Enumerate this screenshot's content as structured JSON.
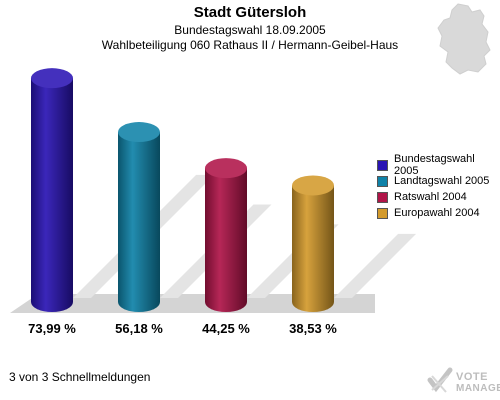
{
  "header": {
    "title": "Stadt Gütersloh",
    "subtitle1": "Bundestagswahl 18.09.2005",
    "subtitle2": "Wahlbeteiligung 060 Rathaus II / Hermann-Geibel-Haus"
  },
  "footer": {
    "text": "3 von 3 Schnellmeldungen"
  },
  "brand": {
    "line1": "VOTE",
    "line2": "MANAGER"
  },
  "icons": {
    "map": "germany-map-icon",
    "logo": "votemanager-logo-icon"
  },
  "chart_data": {
    "type": "bar",
    "categories": [
      "Bundestagswahl 2005",
      "Landtagswahl 2005",
      "Ratswahl 2004",
      "Europawahl 2004"
    ],
    "values": [
      73.99,
      56.18,
      44.25,
      38.53
    ],
    "value_labels": [
      "73,99 %",
      "56,18 %",
      "44,25 %",
      "38,53 %"
    ],
    "colors": [
      "#2a14b4",
      "#0f82a8",
      "#b01448",
      "#d39a2c"
    ],
    "ylim": [
      0,
      80
    ],
    "grid": false,
    "legend": {
      "position": "right",
      "entries": [
        "Bundestagswahl 2005",
        "Landtagswahl 2005",
        "Ratswahl 2004",
        "Europawahl 2004"
      ]
    }
  }
}
